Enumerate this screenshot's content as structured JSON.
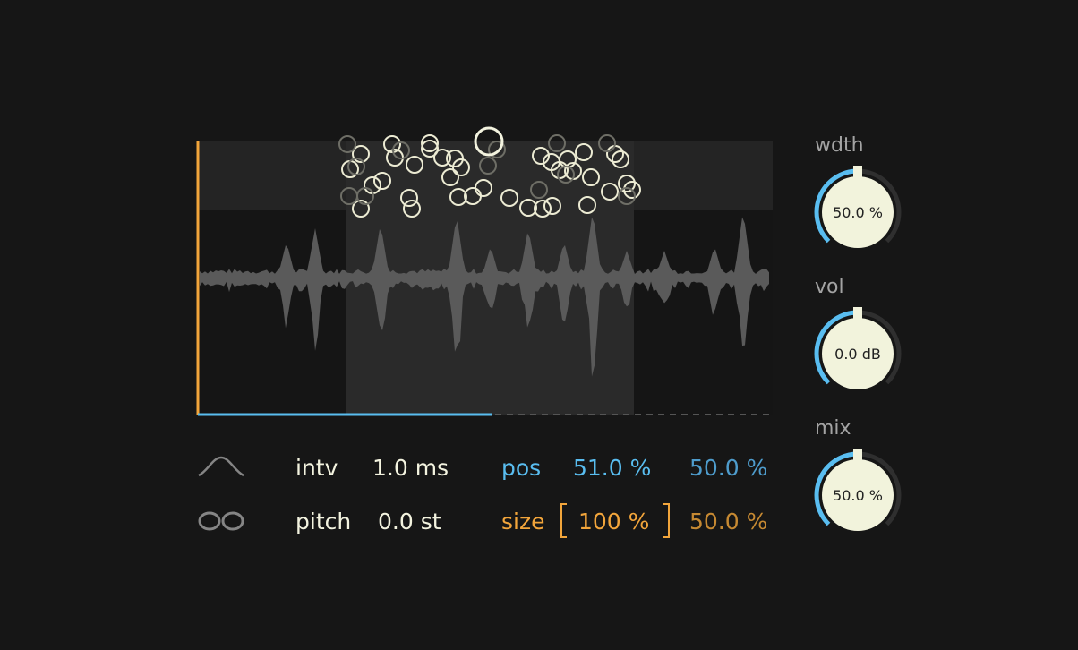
{
  "grain_display": {
    "position_fraction": 0.51,
    "selection_width_fraction": 0.5
  },
  "params": {
    "envelope_icon": "bell-curve-icon",
    "loop_icon": "infinity-icon",
    "intv_label": "intv",
    "intv_value": "1.0 ms",
    "pitch_label": "pitch",
    "pitch_value": "0.0 st",
    "pos_label": "pos",
    "pos_value": "51.0 %",
    "pos_spread": "50.0 %",
    "size_label": "size",
    "size_value": "100 %",
    "size_spread": "50.0 %"
  },
  "knobs": [
    {
      "label": "wdth",
      "value_text": "50.0 %",
      "level": 0.5
    },
    {
      "label": "vol",
      "value_text": "0.0 dB",
      "level": 0.5
    },
    {
      "label": "mix",
      "value_text": "50.0 %",
      "level": 0.5
    }
  ],
  "colors": {
    "background": "#161616",
    "accent_blue": "#59bdf0",
    "accent_orange": "#f2a53b",
    "cream": "#f3f3df",
    "waveform": "#5a5a5a"
  }
}
